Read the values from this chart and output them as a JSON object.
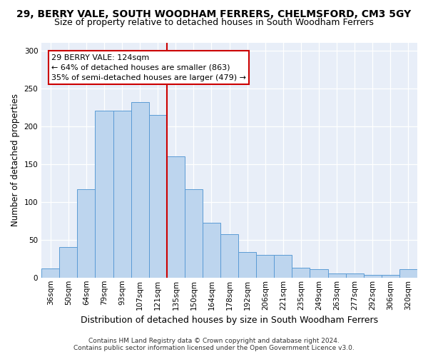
{
  "title": "29, BERRY VALE, SOUTH WOODHAM FERRERS, CHELMSFORD, CM3 5GY",
  "subtitle": "Size of property relative to detached houses in South Woodham Ferrers",
  "xlabel": "Distribution of detached houses by size in South Woodham Ferrers",
  "ylabel": "Number of detached properties",
  "categories": [
    "36sqm",
    "50sqm",
    "64sqm",
    "79sqm",
    "93sqm",
    "107sqm",
    "121sqm",
    "135sqm",
    "150sqm",
    "164sqm",
    "178sqm",
    "192sqm",
    "206sqm",
    "221sqm",
    "235sqm",
    "249sqm",
    "263sqm",
    "277sqm",
    "292sqm",
    "306sqm",
    "320sqm"
  ],
  "values": [
    12,
    40,
    117,
    220,
    220,
    232,
    215,
    160,
    117,
    72,
    57,
    34,
    30,
    30,
    13,
    11,
    5,
    5,
    4,
    4,
    11
  ],
  "bar_color": "#bdd5ee",
  "bar_edge_color": "#5b9bd5",
  "vline_color": "#cc0000",
  "vline_x": 6.5,
  "annotation_text": "29 BERRY VALE: 124sqm\n← 64% of detached houses are smaller (863)\n35% of semi-detached houses are larger (479) →",
  "annotation_box_facecolor": "white",
  "annotation_box_edgecolor": "#cc0000",
  "ylim": [
    0,
    310
  ],
  "yticks": [
    0,
    50,
    100,
    150,
    200,
    250,
    300
  ],
  "plot_bg_color": "#e8eef8",
  "footer_line1": "Contains HM Land Registry data © Crown copyright and database right 2024.",
  "footer_line2": "Contains public sector information licensed under the Open Government Licence v3.0.",
  "title_fontsize": 10,
  "subtitle_fontsize": 9,
  "xlabel_fontsize": 9,
  "ylabel_fontsize": 8.5,
  "tick_fontsize": 7.5,
  "annotation_fontsize": 8,
  "footer_fontsize": 6.5
}
